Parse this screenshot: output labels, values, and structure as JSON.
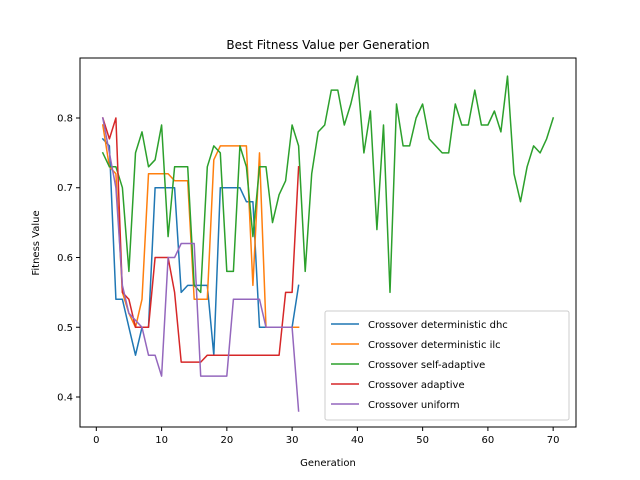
{
  "chart_data": {
    "type": "line",
    "title": "Best Fitness Value per Generation",
    "xlabel": "Generation",
    "ylabel": "Fitness Value",
    "xlim": [
      -2.5,
      73.5
    ],
    "ylim": [
      0.357,
      0.886
    ],
    "xticks": [
      0,
      10,
      20,
      30,
      40,
      50,
      60,
      70
    ],
    "yticks": [
      0.4,
      0.5,
      0.6,
      0.7,
      0.8
    ],
    "ytick_labels": [
      "0.4",
      "0.5",
      "0.6",
      "0.7",
      "0.8"
    ],
    "grid": false,
    "legend_position": "lower-right",
    "series": [
      {
        "name": "Crossover deterministic dhc",
        "color": "#1f77b4",
        "x": [
          1,
          2,
          3,
          4,
          5,
          6,
          7,
          8,
          9,
          10,
          11,
          12,
          13,
          14,
          15,
          16,
          17,
          18,
          19,
          20,
          21,
          22,
          23,
          24,
          25,
          26,
          27,
          28,
          29,
          30,
          31
        ],
        "y": [
          0.77,
          0.76,
          0.54,
          0.54,
          0.5,
          0.46,
          0.5,
          0.5,
          0.7,
          0.7,
          0.7,
          0.7,
          0.55,
          0.56,
          0.56,
          0.56,
          0.56,
          0.46,
          0.7,
          0.7,
          0.7,
          0.7,
          0.68,
          0.68,
          0.5,
          0.5,
          0.5,
          0.5,
          0.5,
          0.5,
          0.56
        ]
      },
      {
        "name": "Crossover deterministic ilc",
        "color": "#ff7f0e",
        "x": [
          1,
          2,
          3,
          4,
          5,
          6,
          7,
          8,
          9,
          10,
          11,
          12,
          13,
          14,
          15,
          16,
          17,
          18,
          19,
          20,
          21,
          22,
          23,
          24,
          25,
          26,
          27,
          28,
          29,
          30,
          31
        ],
        "y": [
          0.79,
          0.73,
          0.72,
          0.55,
          0.52,
          0.5,
          0.54,
          0.72,
          0.72,
          0.72,
          0.72,
          0.71,
          0.71,
          0.71,
          0.54,
          0.54,
          0.54,
          0.74,
          0.76,
          0.76,
          0.76,
          0.76,
          0.76,
          0.56,
          0.75,
          0.5,
          0.5,
          0.5,
          0.5,
          0.5,
          0.5
        ]
      },
      {
        "name": "Crossover self-adaptive",
        "color": "#2ca02c",
        "x": [
          1,
          2,
          3,
          4,
          5,
          6,
          7,
          8,
          9,
          10,
          11,
          12,
          13,
          14,
          15,
          16,
          17,
          18,
          19,
          20,
          21,
          22,
          23,
          24,
          25,
          26,
          27,
          28,
          29,
          30,
          31,
          32,
          33,
          34,
          35,
          36,
          37,
          38,
          39,
          40,
          41,
          42,
          43,
          44,
          45,
          46,
          47,
          48,
          49,
          50,
          51,
          52,
          53,
          54,
          55,
          56,
          57,
          58,
          59,
          60,
          61,
          62,
          63,
          64,
          65,
          66,
          67,
          68,
          69,
          70
        ],
        "y": [
          0.75,
          0.73,
          0.73,
          0.7,
          0.58,
          0.75,
          0.78,
          0.73,
          0.74,
          0.79,
          0.63,
          0.73,
          0.73,
          0.73,
          0.56,
          0.55,
          0.73,
          0.76,
          0.75,
          0.58,
          0.58,
          0.76,
          0.73,
          0.63,
          0.73,
          0.73,
          0.65,
          0.69,
          0.71,
          0.79,
          0.76,
          0.58,
          0.72,
          0.78,
          0.79,
          0.84,
          0.84,
          0.79,
          0.82,
          0.86,
          0.75,
          0.81,
          0.64,
          0.79,
          0.55,
          0.82,
          0.76,
          0.76,
          0.8,
          0.82,
          0.77,
          0.76,
          0.75,
          0.75,
          0.82,
          0.79,
          0.79,
          0.84,
          0.79,
          0.79,
          0.81,
          0.78,
          0.86,
          0.72,
          0.68,
          0.73,
          0.76,
          0.75,
          0.77,
          0.8
        ]
      },
      {
        "name": "Crossover adaptive",
        "color": "#d62728",
        "x": [
          1,
          2,
          3,
          4,
          5,
          6,
          7,
          8,
          9,
          10,
          11,
          12,
          13,
          14,
          15,
          16,
          17,
          18,
          19,
          20,
          21,
          22,
          23,
          24,
          25,
          26,
          27,
          28,
          29,
          30,
          31
        ],
        "y": [
          0.8,
          0.77,
          0.8,
          0.55,
          0.54,
          0.5,
          0.5,
          0.5,
          0.6,
          0.6,
          0.6,
          0.55,
          0.45,
          0.45,
          0.45,
          0.45,
          0.46,
          0.46,
          0.46,
          0.46,
          0.46,
          0.46,
          0.46,
          0.46,
          0.46,
          0.46,
          0.46,
          0.46,
          0.55,
          0.55,
          0.73
        ]
      },
      {
        "name": "Crossover uniform",
        "color": "#9467bd",
        "x": [
          1,
          2,
          3,
          4,
          5,
          6,
          7,
          8,
          9,
          10,
          11,
          12,
          13,
          14,
          15,
          16,
          17,
          18,
          19,
          20,
          21,
          22,
          23,
          24,
          25,
          26,
          27,
          28,
          29,
          30,
          31
        ],
        "y": [
          0.8,
          0.75,
          0.7,
          0.56,
          0.52,
          0.51,
          0.5,
          0.46,
          0.46,
          0.43,
          0.6,
          0.6,
          0.62,
          0.62,
          0.62,
          0.43,
          0.43,
          0.43,
          0.43,
          0.43,
          0.54,
          0.54,
          0.54,
          0.54,
          0.54,
          0.5,
          0.5,
          0.5,
          0.5,
          0.5,
          0.38
        ]
      }
    ]
  }
}
